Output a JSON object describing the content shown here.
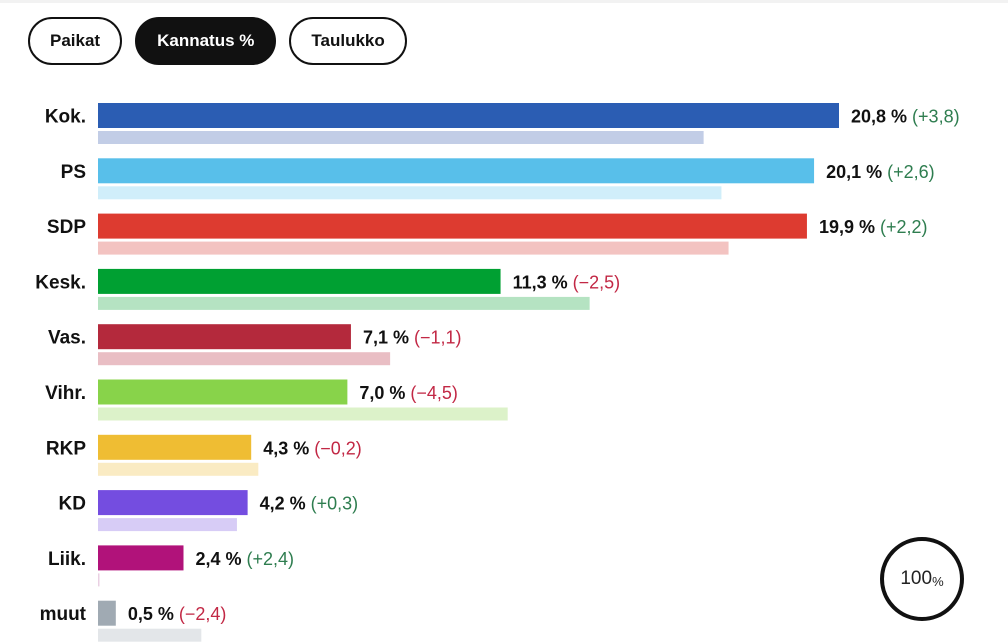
{
  "tabs": [
    {
      "label": "Paikat",
      "active": false
    },
    {
      "label": "Kannatus %",
      "active": true
    },
    {
      "label": "Taulukko",
      "active": false
    }
  ],
  "badge": {
    "value": "100",
    "unit": "%"
  },
  "chart_data": {
    "type": "bar",
    "orientation": "horizontal",
    "categories": [
      "Kok.",
      "PS",
      "SDP",
      "Kesk.",
      "Vas.",
      "Vihr.",
      "RKP",
      "KD",
      "Liik.",
      "muut"
    ],
    "series": [
      {
        "values": [
          20.8,
          20.1,
          19.9,
          11.3,
          7.1,
          7.0,
          4.3,
          4.2,
          2.4,
          0.5
        ]
      },
      {
        "values": [
          17.0,
          17.5,
          17.7,
          13.8,
          8.2,
          11.5,
          4.5,
          3.9,
          0.0,
          2.9
        ]
      }
    ],
    "value_labels": [
      "20,8 %",
      "20,1 %",
      "19,9 %",
      "11,3 %",
      "7,1 %",
      "7,0 %",
      "4,3 %",
      "4,2 %",
      "2,4 %",
      "0,5 %"
    ],
    "change_labels": [
      "(+3,8)",
      "(+2,6)",
      "(+2,2)",
      "(−2,5)",
      "(−1,1)",
      "(−4,5)",
      "(−0,2)",
      "(+0,3)",
      "(+2,4)",
      "(−2,4)"
    ],
    "change_positive": [
      true,
      true,
      true,
      false,
      false,
      false,
      false,
      true,
      true,
      false
    ],
    "colors": [
      "#2b5db3",
      "#58bfea",
      "#dd3b30",
      "#00a032",
      "#b4293c",
      "#88d34a",
      "#efbd33",
      "#744de0",
      "#b1127a",
      "#a0aab3"
    ],
    "prev_colors": [
      "#c2cde6",
      "#d0eefa",
      "#f3c3c1",
      "#b5e3c2",
      "#e9bec4",
      "#dcf2c9",
      "#faebc3",
      "#d7ccf6",
      "#ead0e3",
      "#e3e6e9"
    ],
    "positive_color": "#2e7d4f",
    "negative_color": "#c22845",
    "xlim": [
      0,
      28
    ]
  }
}
